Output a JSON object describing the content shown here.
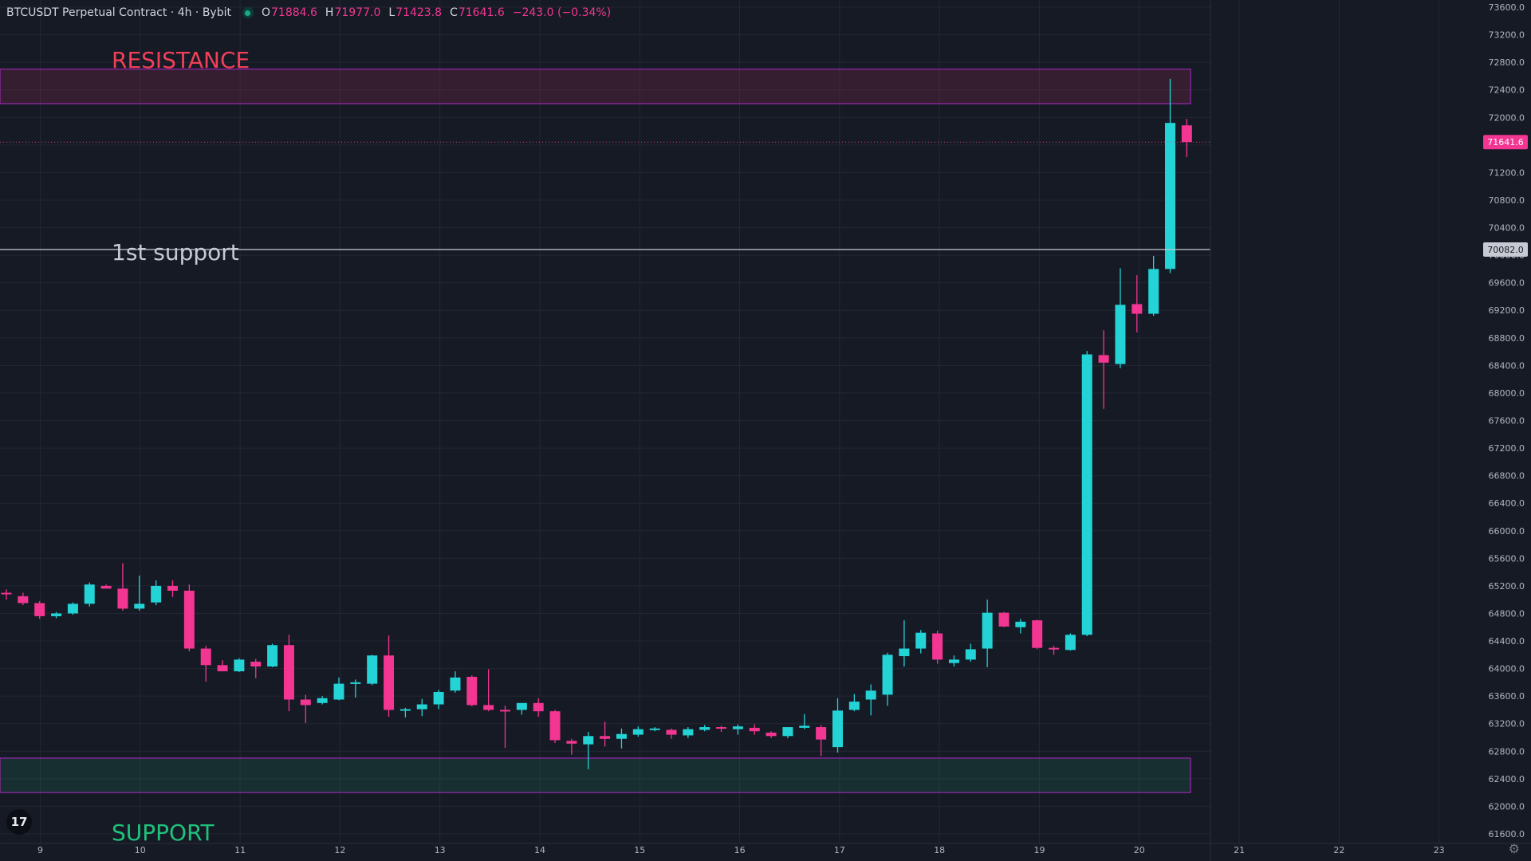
{
  "legend": {
    "symbol": "BTCUSDT Perpetual Contract · 4h · Bybit",
    "open_key": "O",
    "open": "71884.6",
    "high_key": "H",
    "high": "71977.0",
    "low_key": "L",
    "low": "71423.8",
    "close_key": "C",
    "close": "71641.6",
    "change": "−243.0 (−0.34%)"
  },
  "colors": {
    "background": "#161a25",
    "grid": "#232735",
    "up": "#23d3d6",
    "down": "#f23692",
    "resistance_label": "#f23f58",
    "support_label": "#1ec27a",
    "support_line": "#c7cad3",
    "axis_text": "#b2b5be"
  },
  "icons": {
    "logo": "tradingview-logo-icon",
    "settings": "gear-icon"
  },
  "chart_data": {
    "type": "candlestick",
    "timeframe": "4h",
    "ylim": [
      61600,
      73600
    ],
    "y_ticks": [
      61600,
      62000,
      62400,
      62800,
      63200,
      63600,
      64000,
      64400,
      64800,
      65200,
      65600,
      66000,
      66400,
      66800,
      67200,
      67600,
      68000,
      68400,
      68800,
      69200,
      69600,
      70000,
      70400,
      70800,
      71200,
      71600,
      72000,
      72400,
      72800,
      73200,
      73600
    ],
    "x_tick_labels": [
      "9",
      "10",
      "11",
      "12",
      "13",
      "14",
      "15",
      "16",
      "17",
      "18",
      "19",
      "20",
      "21",
      "22",
      "23"
    ],
    "candles": [
      {
        "o": 65100,
        "h": 65150,
        "l": 65000,
        "c": 65080
      },
      {
        "o": 65050,
        "h": 65100,
        "l": 64920,
        "c": 64950
      },
      {
        "o": 64950,
        "h": 64980,
        "l": 64720,
        "c": 64760
      },
      {
        "o": 64760,
        "h": 64820,
        "l": 64730,
        "c": 64800
      },
      {
        "o": 64800,
        "h": 64960,
        "l": 64780,
        "c": 64940
      },
      {
        "o": 64940,
        "h": 65250,
        "l": 64900,
        "c": 65220
      },
      {
        "o": 65200,
        "h": 65220,
        "l": 65180,
        "c": 65160
      },
      {
        "o": 65160,
        "h": 65530,
        "l": 64840,
        "c": 64870
      },
      {
        "o": 64870,
        "h": 65350,
        "l": 64840,
        "c": 64940
      },
      {
        "o": 64960,
        "h": 65280,
        "l": 64920,
        "c": 65200
      },
      {
        "o": 65200,
        "h": 65280,
        "l": 65040,
        "c": 65130
      },
      {
        "o": 65130,
        "h": 65220,
        "l": 64250,
        "c": 64290
      },
      {
        "o": 64290,
        "h": 64330,
        "l": 63810,
        "c": 64050
      },
      {
        "o": 64050,
        "h": 64120,
        "l": 63960,
        "c": 63960
      },
      {
        "o": 63960,
        "h": 64150,
        "l": 63950,
        "c": 64130
      },
      {
        "o": 64100,
        "h": 64140,
        "l": 63860,
        "c": 64030
      },
      {
        "o": 64030,
        "h": 64360,
        "l": 64020,
        "c": 64340
      },
      {
        "o": 64340,
        "h": 64490,
        "l": 63380,
        "c": 63550
      },
      {
        "o": 63550,
        "h": 63620,
        "l": 63210,
        "c": 63470
      },
      {
        "o": 63500,
        "h": 63600,
        "l": 63480,
        "c": 63570
      },
      {
        "o": 63550,
        "h": 63870,
        "l": 63540,
        "c": 63780
      },
      {
        "o": 63790,
        "h": 63840,
        "l": 63580,
        "c": 63800
      },
      {
        "o": 63780,
        "h": 64200,
        "l": 63760,
        "c": 64190
      },
      {
        "o": 64190,
        "h": 64480,
        "l": 63300,
        "c": 63400
      },
      {
        "o": 63400,
        "h": 63430,
        "l": 63290,
        "c": 63410
      },
      {
        "o": 63410,
        "h": 63560,
        "l": 63310,
        "c": 63480
      },
      {
        "o": 63480,
        "h": 63690,
        "l": 63410,
        "c": 63660
      },
      {
        "o": 63680,
        "h": 63960,
        "l": 63650,
        "c": 63870
      },
      {
        "o": 63880,
        "h": 63900,
        "l": 63450,
        "c": 63470
      },
      {
        "o": 63470,
        "h": 63990,
        "l": 63380,
        "c": 63400
      },
      {
        "o": 63400,
        "h": 63460,
        "l": 62850,
        "c": 63390
      },
      {
        "o": 63400,
        "h": 63500,
        "l": 63330,
        "c": 63500
      },
      {
        "o": 63500,
        "h": 63570,
        "l": 63300,
        "c": 63380
      },
      {
        "o": 63380,
        "h": 63400,
        "l": 62920,
        "c": 62960
      },
      {
        "o": 62950,
        "h": 62980,
        "l": 62750,
        "c": 62910
      },
      {
        "o": 62900,
        "h": 63080,
        "l": 62540,
        "c": 63020
      },
      {
        "o": 63020,
        "h": 63230,
        "l": 62870,
        "c": 62980
      },
      {
        "o": 62980,
        "h": 63130,
        "l": 62840,
        "c": 63050
      },
      {
        "o": 63040,
        "h": 63160,
        "l": 63010,
        "c": 63120
      },
      {
        "o": 63120,
        "h": 63150,
        "l": 63090,
        "c": 63130
      },
      {
        "o": 63110,
        "h": 63130,
        "l": 62980,
        "c": 63040
      },
      {
        "o": 63030,
        "h": 63150,
        "l": 62990,
        "c": 63120
      },
      {
        "o": 63110,
        "h": 63180,
        "l": 63090,
        "c": 63150
      },
      {
        "o": 63150,
        "h": 63170,
        "l": 63080,
        "c": 63140
      },
      {
        "o": 63120,
        "h": 63190,
        "l": 63040,
        "c": 63160
      },
      {
        "o": 63140,
        "h": 63190,
        "l": 63040,
        "c": 63090
      },
      {
        "o": 63070,
        "h": 63090,
        "l": 62990,
        "c": 63020
      },
      {
        "o": 63020,
        "h": 63150,
        "l": 62990,
        "c": 63150
      },
      {
        "o": 63140,
        "h": 63340,
        "l": 63120,
        "c": 63170
      },
      {
        "o": 63150,
        "h": 63180,
        "l": 62730,
        "c": 62970
      },
      {
        "o": 62860,
        "h": 63570,
        "l": 62780,
        "c": 63390
      },
      {
        "o": 63400,
        "h": 63630,
        "l": 63380,
        "c": 63520
      },
      {
        "o": 63550,
        "h": 63770,
        "l": 63320,
        "c": 63680
      },
      {
        "o": 63620,
        "h": 64230,
        "l": 63460,
        "c": 64200
      },
      {
        "o": 64180,
        "h": 64700,
        "l": 64030,
        "c": 64290
      },
      {
        "o": 64290,
        "h": 64560,
        "l": 64220,
        "c": 64520
      },
      {
        "o": 64510,
        "h": 64550,
        "l": 64070,
        "c": 64130
      },
      {
        "o": 64080,
        "h": 64190,
        "l": 64030,
        "c": 64130
      },
      {
        "o": 64130,
        "h": 64360,
        "l": 64100,
        "c": 64280
      },
      {
        "o": 64290,
        "h": 65000,
        "l": 64020,
        "c": 64810
      },
      {
        "o": 64810,
        "h": 64820,
        "l": 64600,
        "c": 64610
      },
      {
        "o": 64600,
        "h": 64720,
        "l": 64510,
        "c": 64680
      },
      {
        "o": 64700,
        "h": 64710,
        "l": 64280,
        "c": 64300
      },
      {
        "o": 64300,
        "h": 64330,
        "l": 64200,
        "c": 64280
      },
      {
        "o": 64270,
        "h": 64510,
        "l": 64260,
        "c": 64490
      },
      {
        "o": 64490,
        "h": 68610,
        "l": 64470,
        "c": 68560
      },
      {
        "o": 68550,
        "h": 68910,
        "l": 67770,
        "c": 68440
      },
      {
        "o": 68420,
        "h": 69810,
        "l": 68360,
        "c": 69280
      },
      {
        "o": 69290,
        "h": 69710,
        "l": 68880,
        "c": 69150
      },
      {
        "o": 69150,
        "h": 69990,
        "l": 69120,
        "c": 69800
      },
      {
        "o": 69800,
        "h": 72560,
        "l": 69740,
        "c": 71920
      },
      {
        "o": 71884.6,
        "h": 71977.0,
        "l": 71423.8,
        "c": 71641.6
      }
    ],
    "current_price": "71641.6",
    "support_line_price": "70082.0",
    "zones": [
      {
        "name": "resistance",
        "label": "RESISTANCE",
        "from": 72200,
        "to": 72700
      },
      {
        "name": "support",
        "label": "SUPPORT",
        "from": 62200,
        "to": 62700
      }
    ],
    "level_label": "1st support"
  }
}
